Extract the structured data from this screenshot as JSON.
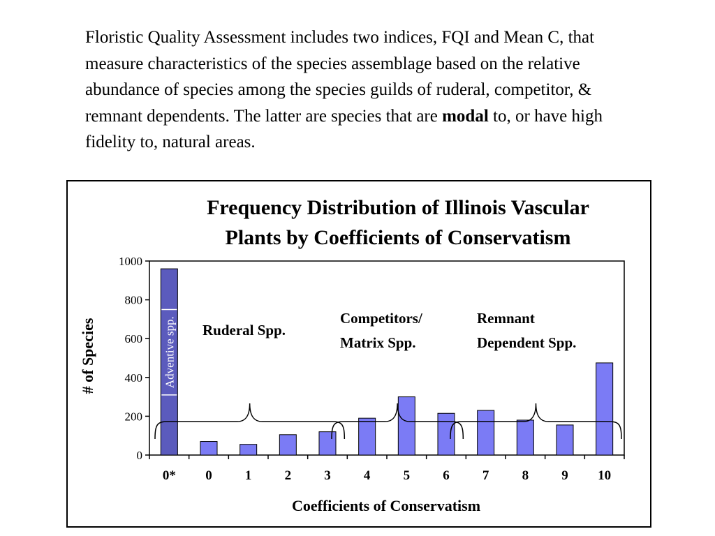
{
  "intro": {
    "before": "Floristic Quality Assessment includes two indices, FQI and Mean C, that measure characteristics of the species assemblage based on the relative abundance of species among the species guilds of ruderal, competitor, & remnant dependents.  The latter are species that are ",
    "bold": "modal",
    "after": " to, or have high fidelity to, natural areas."
  },
  "chart_data": {
    "type": "bar",
    "title": [
      "Frequency Distribution of Illinois Vascular",
      "Plants by Coefficients of Conservatism"
    ],
    "xlabel": "Coefficients of Conservatism",
    "ylabel": "# of Species",
    "ylim": [
      0,
      1000
    ],
    "yticks": [
      "0",
      "200",
      "400",
      "600",
      "800",
      "1000"
    ],
    "categories": [
      "0*",
      "0",
      "1",
      "2",
      "3",
      "4",
      "5",
      "6",
      "7",
      "8",
      "9",
      "10"
    ],
    "values": [
      960,
      70,
      55,
      105,
      120,
      190,
      300,
      215,
      230,
      180,
      155,
      475
    ],
    "bar_colors": [
      "#5b5bbd",
      "#7b7bf5",
      "#7b7bf5",
      "#7b7bf5",
      "#7b7bf5",
      "#7b7bf5",
      "#7b7bf5",
      "#7b7bf5",
      "#7b7bf5",
      "#7b7bf5",
      "#7b7bf5",
      "#7b7bf5"
    ],
    "bar_label": "Adventive spp.",
    "grid": false,
    "groups": [
      {
        "lines": [
          "Ruderal Spp."
        ],
        "from": "0",
        "to": "3"
      },
      {
        "lines": [
          "Competitors/",
          "Matrix Spp."
        ],
        "from": "4",
        "to": "6"
      },
      {
        "lines": [
          "Remnant",
          "Dependent Spp."
        ],
        "from": "7",
        "to": "10"
      }
    ]
  }
}
